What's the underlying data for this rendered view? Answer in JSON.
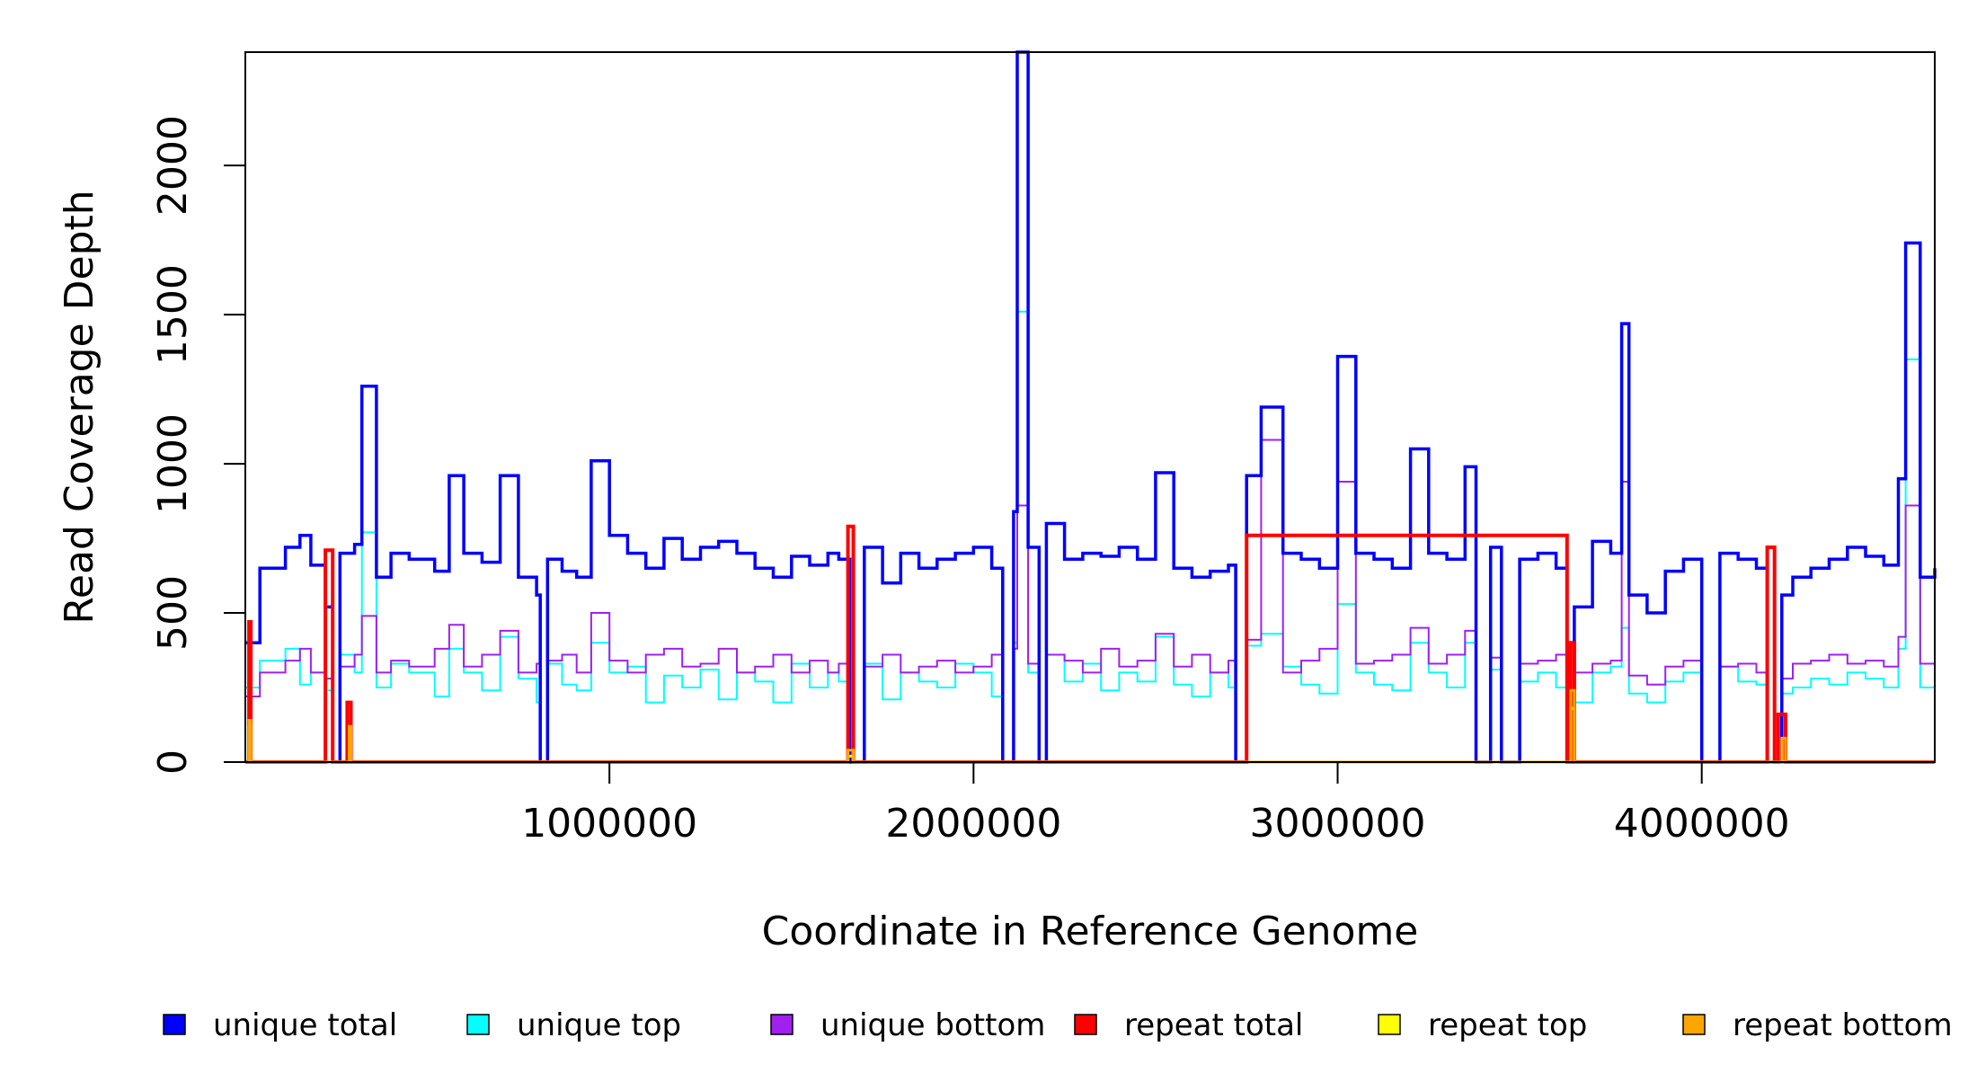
{
  "chart_data": {
    "type": "line",
    "title": "",
    "xlabel": "Coordinate in Reference Genome",
    "ylabel": "Read Coverage Depth",
    "xlim": [
      1,
      4640000
    ],
    "ylim": [
      0,
      2380
    ],
    "xticks": [
      1000000,
      2000000,
      3000000,
      4000000
    ],
    "xtick_labels": [
      "1000000",
      "2000000",
      "3000000",
      "4000000"
    ],
    "yticks": [
      0,
      500,
      1000,
      1500,
      2000
    ],
    "ytick_labels": [
      "0",
      "500",
      "1000",
      "1500",
      "2000"
    ],
    "legend_position": "bottom",
    "series": [
      {
        "name": "unique total",
        "color": "#0000FF",
        "style": "step",
        "x": [
          1,
          40000,
          110000,
          150000,
          180000,
          220000,
          240000,
          260000,
          300000,
          320000,
          360000,
          400000,
          450000,
          520000,
          560000,
          600000,
          650000,
          700000,
          750000,
          800000,
          810000,
          830000,
          870000,
          910000,
          950000,
          1000000,
          1050000,
          1100000,
          1150000,
          1200000,
          1250000,
          1300000,
          1350000,
          1400000,
          1450000,
          1500000,
          1550000,
          1600000,
          1630000,
          1660000,
          1700000,
          1750000,
          1800000,
          1850000,
          1900000,
          1950000,
          2000000,
          2050000,
          2080000,
          2110000,
          2120000,
          2150000,
          2180000,
          2200000,
          2250000,
          2300000,
          2350000,
          2400000,
          2450000,
          2500000,
          2550000,
          2600000,
          2650000,
          2700000,
          2720000,
          2750000,
          2790000,
          2850000,
          2900000,
          2950000,
          3000000,
          3050000,
          3100000,
          3150000,
          3200000,
          3250000,
          3300000,
          3350000,
          3380000,
          3420000,
          3450000,
          3500000,
          3550000,
          3600000,
          3630000,
          3650000,
          3700000,
          3750000,
          3780000,
          3800000,
          3850000,
          3900000,
          3950000,
          4000000,
          4050000,
          4100000,
          4150000,
          4180000,
          4220000,
          4250000,
          4300000,
          4350000,
          4400000,
          4450000,
          4500000,
          4540000,
          4560000,
          4600000,
          4640000
        ],
        "values": [
          400,
          650,
          720,
          760,
          660,
          520,
          0,
          700,
          730,
          1260,
          620,
          700,
          680,
          640,
          960,
          700,
          670,
          960,
          620,
          560,
          0,
          680,
          640,
          620,
          1010,
          760,
          700,
          650,
          750,
          680,
          720,
          740,
          700,
          650,
          620,
          690,
          660,
          700,
          680,
          0,
          720,
          600,
          700,
          650,
          680,
          700,
          720,
          650,
          0,
          840,
          2380,
          720,
          0,
          800,
          680,
          700,
          690,
          720,
          680,
          970,
          650,
          620,
          640,
          660,
          0,
          960,
          1190,
          700,
          680,
          650,
          1360,
          700,
          680,
          650,
          1050,
          700,
          680,
          990,
          0,
          720,
          0,
          680,
          700,
          650,
          0,
          520,
          740,
          700,
          1470,
          560,
          500,
          640,
          680,
          0,
          700,
          680,
          650,
          0,
          560,
          620,
          650,
          680,
          720,
          690,
          660,
          950,
          1740,
          620,
          650
        ]
      },
      {
        "name": "unique top",
        "color": "#00FFFF",
        "style": "step",
        "x": [
          1,
          40000,
          110000,
          150000,
          180000,
          220000,
          240000,
          260000,
          300000,
          320000,
          360000,
          400000,
          450000,
          520000,
          560000,
          600000,
          650000,
          700000,
          750000,
          800000,
          810000,
          830000,
          870000,
          910000,
          950000,
          1000000,
          1050000,
          1100000,
          1150000,
          1200000,
          1250000,
          1300000,
          1350000,
          1400000,
          1450000,
          1500000,
          1550000,
          1600000,
          1630000,
          1660000,
          1700000,
          1750000,
          1800000,
          1850000,
          1900000,
          1950000,
          2000000,
          2050000,
          2080000,
          2110000,
          2120000,
          2150000,
          2180000,
          2200000,
          2250000,
          2300000,
          2350000,
          2400000,
          2450000,
          2500000,
          2550000,
          2600000,
          2650000,
          2700000,
          2720000,
          2750000,
          2790000,
          2850000,
          2900000,
          2950000,
          3000000,
          3050000,
          3100000,
          3150000,
          3200000,
          3250000,
          3300000,
          3350000,
          3380000,
          3420000,
          3450000,
          3500000,
          3550000,
          3600000,
          3630000,
          3650000,
          3700000,
          3750000,
          3780000,
          3800000,
          3850000,
          3900000,
          3950000,
          4000000,
          4050000,
          4100000,
          4150000,
          4180000,
          4220000,
          4250000,
          4300000,
          4350000,
          4400000,
          4450000,
          4500000,
          4540000,
          4560000,
          4600000,
          4640000
        ],
        "values": [
          250,
          340,
          380,
          260,
          300,
          240,
          0,
          360,
          300,
          770,
          250,
          330,
          300,
          220,
          380,
          300,
          240,
          420,
          280,
          200,
          0,
          330,
          260,
          240,
          400,
          300,
          320,
          200,
          290,
          250,
          310,
          210,
          300,
          270,
          200,
          330,
          250,
          300,
          270,
          0,
          330,
          210,
          300,
          270,
          250,
          330,
          300,
          220,
          0,
          400,
          1510,
          300,
          0,
          360,
          270,
          330,
          240,
          300,
          270,
          420,
          260,
          220,
          300,
          250,
          0,
          390,
          430,
          320,
          260,
          230,
          530,
          300,
          260,
          240,
          400,
          300,
          250,
          400,
          0,
          310,
          0,
          270,
          300,
          250,
          0,
          200,
          300,
          320,
          450,
          230,
          200,
          270,
          300,
          0,
          320,
          270,
          260,
          0,
          230,
          250,
          280,
          260,
          300,
          280,
          250,
          380,
          1350,
          250,
          280
        ]
      },
      {
        "name": "unique bottom",
        "color": "#A020F0",
        "style": "step",
        "x": [
          1,
          40000,
          110000,
          150000,
          180000,
          220000,
          240000,
          260000,
          300000,
          320000,
          360000,
          400000,
          450000,
          520000,
          560000,
          600000,
          650000,
          700000,
          750000,
          800000,
          810000,
          830000,
          870000,
          910000,
          950000,
          1000000,
          1050000,
          1100000,
          1150000,
          1200000,
          1250000,
          1300000,
          1350000,
          1400000,
          1450000,
          1500000,
          1550000,
          1600000,
          1630000,
          1660000,
          1700000,
          1750000,
          1800000,
          1850000,
          1900000,
          1950000,
          2000000,
          2050000,
          2080000,
          2110000,
          2120000,
          2150000,
          2180000,
          2200000,
          2250000,
          2300000,
          2350000,
          2400000,
          2450000,
          2500000,
          2550000,
          2600000,
          2650000,
          2700000,
          2720000,
          2750000,
          2790000,
          2850000,
          2900000,
          2950000,
          3000000,
          3050000,
          3100000,
          3150000,
          3200000,
          3250000,
          3300000,
          3350000,
          3380000,
          3420000,
          3450000,
          3500000,
          3550000,
          3600000,
          3630000,
          3650000,
          3700000,
          3750000,
          3780000,
          3800000,
          3850000,
          3900000,
          3950000,
          4000000,
          4050000,
          4100000,
          4150000,
          4180000,
          4220000,
          4250000,
          4300000,
          4350000,
          4400000,
          4450000,
          4500000,
          4540000,
          4560000,
          4600000,
          4640000
        ],
        "values": [
          220,
          300,
          340,
          380,
          300,
          280,
          0,
          320,
          360,
          490,
          300,
          340,
          320,
          380,
          460,
          320,
          360,
          440,
          300,
          330,
          0,
          340,
          360,
          300,
          500,
          340,
          300,
          360,
          380,
          320,
          330,
          380,
          300,
          320,
          360,
          300,
          340,
          300,
          330,
          0,
          320,
          360,
          300,
          320,
          340,
          300,
          320,
          360,
          0,
          380,
          860,
          330,
          0,
          360,
          340,
          300,
          380,
          320,
          340,
          430,
          320,
          360,
          300,
          340,
          0,
          410,
          1080,
          300,
          340,
          380,
          940,
          330,
          340,
          360,
          450,
          330,
          360,
          440,
          0,
          350,
          0,
          330,
          340,
          360,
          0,
          300,
          330,
          340,
          940,
          290,
          260,
          320,
          340,
          0,
          320,
          330,
          300,
          0,
          280,
          330,
          340,
          360,
          330,
          340,
          320,
          420,
          860,
          330,
          300
        ]
      },
      {
        "name": "repeat total",
        "color": "#FF0000",
        "style": "step",
        "x": [
          1,
          10000,
          15000,
          215000,
          220000,
          240000,
          270000,
          280000,
          290000,
          1640000,
          1655000,
          1670000,
          2740000,
          2750000,
          3630000,
          3640000,
          3650000,
          4170000,
          4180000,
          4200000,
          4210000,
          4230000,
          4640000
        ],
        "values": [
          0,
          470,
          0,
          0,
          710,
          0,
          0,
          200,
          0,
          0,
          790,
          0,
          0,
          760,
          0,
          400,
          0,
          0,
          720,
          0,
          160,
          0,
          0
        ]
      },
      {
        "name": "repeat top",
        "color": "#FFFF00",
        "style": "step",
        "x": [
          1,
          10000,
          15000,
          280000,
          285000,
          290000,
          1640000,
          1655000,
          1670000,
          3630000,
          3640000,
          3650000,
          4640000
        ],
        "values": [
          0,
          120,
          0,
          0,
          60,
          0,
          0,
          20,
          0,
          0,
          180,
          0,
          0
        ]
      },
      {
        "name": "repeat bottom",
        "color": "#FFA500",
        "style": "step",
        "x": [
          1,
          10000,
          15000,
          280000,
          285000,
          290000,
          1640000,
          1655000,
          1670000,
          3630000,
          3640000,
          3650000,
          4210000,
          4220000,
          4230000,
          4640000
        ],
        "values": [
          0,
          140,
          0,
          0,
          120,
          0,
          0,
          40,
          0,
          0,
          240,
          0,
          0,
          80,
          0,
          0
        ]
      }
    ]
  }
}
